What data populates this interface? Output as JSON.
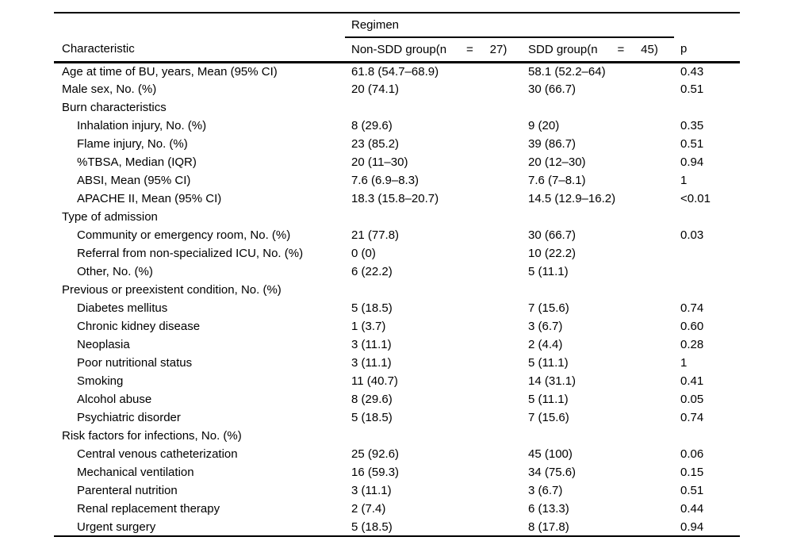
{
  "colors": {
    "background": "#ffffff",
    "text": "#000000",
    "rule": "#000000"
  },
  "table": {
    "spanner_label": "Regimen",
    "columns": {
      "characteristic": "Characteristic",
      "non_sdd": "Non-SDD group(n      =     27)",
      "sdd": "SDD group(n      =     45)",
      "p": "p"
    },
    "rows": [
      {
        "label": "Age at time of BU, years, Mean (95% CI)",
        "indent": 0,
        "non_sdd": "61.8 (54.7–68.9)",
        "sdd": "58.1 (52.2–64)",
        "p": "0.43"
      },
      {
        "label": "Male sex, No. (%)",
        "indent": 0,
        "non_sdd": "20 (74.1)",
        "sdd": "30 (66.7)",
        "p": "0.51"
      },
      {
        "label": "Burn characteristics",
        "indent": 0,
        "non_sdd": "",
        "sdd": "",
        "p": ""
      },
      {
        "label": "Inhalation injury, No. (%)",
        "indent": 1,
        "non_sdd": "8 (29.6)",
        "sdd": "9 (20)",
        "p": "0.35"
      },
      {
        "label": "Flame injury, No. (%)",
        "indent": 1,
        "non_sdd": "23 (85.2)",
        "sdd": "39 (86.7)",
        "p": "0.51"
      },
      {
        "label": "%TBSA, Median (IQR)",
        "indent": 1,
        "non_sdd": "20 (11–30)",
        "sdd": "20 (12–30)",
        "p": "0.94"
      },
      {
        "label": "ABSI, Mean (95% CI)",
        "indent": 1,
        "non_sdd": "7.6 (6.9–8.3)",
        "sdd": "7.6 (7–8.1)",
        "p": "1"
      },
      {
        "label": "APACHE II, Mean (95% CI)",
        "indent": 1,
        "non_sdd": "18.3 (15.8–20.7)",
        "sdd": "14.5 (12.9–16.2)",
        "p": "<0.01"
      },
      {
        "label": "Type of admission",
        "indent": 0,
        "non_sdd": "",
        "sdd": "",
        "p": ""
      },
      {
        "label": "Community or emergency room, No. (%)",
        "indent": 1,
        "non_sdd": "21 (77.8)",
        "sdd": "30 (66.7)",
        "p": "0.03"
      },
      {
        "label": "Referral from non-specialized ICU, No. (%)",
        "indent": 1,
        "non_sdd": "0 (0)",
        "sdd": "10 (22.2)",
        "p": ""
      },
      {
        "label": "Other, No. (%)",
        "indent": 1,
        "non_sdd": "6 (22.2)",
        "sdd": "5 (11.1)",
        "p": ""
      },
      {
        "label": "Previous or preexistent condition, No. (%)",
        "indent": 0,
        "non_sdd": "",
        "sdd": "",
        "p": ""
      },
      {
        "label": "Diabetes mellitus",
        "indent": 1,
        "non_sdd": "5 (18.5)",
        "sdd": "7 (15.6)",
        "p": "0.74"
      },
      {
        "label": "Chronic kidney disease",
        "indent": 1,
        "non_sdd": "1 (3.7)",
        "sdd": "3 (6.7)",
        "p": "0.60"
      },
      {
        "label": "Neoplasia",
        "indent": 1,
        "non_sdd": "3 (11.1)",
        "sdd": "2 (4.4)",
        "p": "0.28"
      },
      {
        "label": "Poor nutritional status",
        "indent": 1,
        "non_sdd": "3 (11.1)",
        "sdd": "5 (11.1)",
        "p": "1"
      },
      {
        "label": "Smoking",
        "indent": 1,
        "non_sdd": "11 (40.7)",
        "sdd": "14 (31.1)",
        "p": "0.41"
      },
      {
        "label": "Alcohol abuse",
        "indent": 1,
        "non_sdd": "8 (29.6)",
        "sdd": "5 (11.1)",
        "p": "0.05"
      },
      {
        "label": "Psychiatric disorder",
        "indent": 1,
        "non_sdd": "5 (18.5)",
        "sdd": "7 (15.6)",
        "p": "0.74"
      },
      {
        "label": "Risk factors for infections, No. (%)",
        "indent": 0,
        "non_sdd": "",
        "sdd": "",
        "p": ""
      },
      {
        "label": "Central venous catheterization",
        "indent": 1,
        "non_sdd": "25 (92.6)",
        "sdd": "45 (100)",
        "p": "0.06"
      },
      {
        "label": "Mechanical ventilation",
        "indent": 1,
        "non_sdd": "16 (59.3)",
        "sdd": "34 (75.6)",
        "p": "0.15"
      },
      {
        "label": "Parenteral nutrition",
        "indent": 1,
        "non_sdd": "3 (11.1)",
        "sdd": "3 (6.7)",
        "p": "0.51"
      },
      {
        "label": "Renal replacement therapy",
        "indent": 1,
        "non_sdd": "2 (7.4)",
        "sdd": "6 (13.3)",
        "p": "0.44"
      },
      {
        "label": "Urgent surgery",
        "indent": 1,
        "non_sdd": "5 (18.5)",
        "sdd": "8 (17.8)",
        "p": "0.94"
      }
    ]
  }
}
